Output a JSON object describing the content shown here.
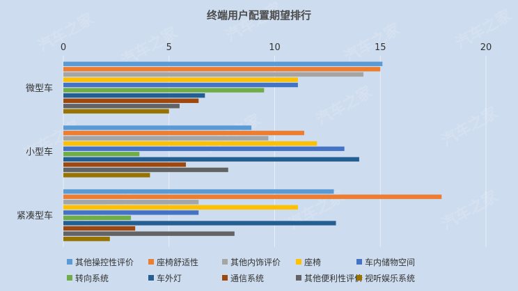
{
  "chart_data": {
    "type": "bar",
    "orientation": "horizontal",
    "title": "终端用户配置期望排行",
    "xlabel": "",
    "ylabel": "",
    "xlim": [
      0,
      20
    ],
    "xticks": [
      0,
      5,
      10,
      15,
      20
    ],
    "grid": true,
    "legend_position": "bottom",
    "categories": [
      "微型车",
      "小型车",
      "紧凑型车"
    ],
    "series": [
      {
        "name": "其他操控性评价",
        "color": "#5b9bd5",
        "values": [
          15.1,
          8.9,
          12.8
        ]
      },
      {
        "name": "座椅舒适性",
        "color": "#ed7d31",
        "values": [
          15.0,
          11.4,
          17.9
        ]
      },
      {
        "name": "其他内饰评价",
        "color": "#a5a5a5",
        "values": [
          14.2,
          9.7,
          6.4
        ]
      },
      {
        "name": "座椅",
        "color": "#ffc000",
        "values": [
          11.1,
          12.0,
          11.1
        ]
      },
      {
        "name": "车内储物空间",
        "color": "#4472c4",
        "values": [
          11.1,
          13.3,
          6.4
        ]
      },
      {
        "name": "转向系统",
        "color": "#70ad47",
        "values": [
          9.5,
          3.6,
          3.2
        ]
      },
      {
        "name": "车外灯",
        "color": "#255e91",
        "values": [
          6.7,
          14.0,
          12.9
        ]
      },
      {
        "name": "通信系统",
        "color": "#9e480e",
        "values": [
          6.4,
          5.8,
          3.4
        ]
      },
      {
        "name": "其他便利性评价",
        "color": "#636363",
        "values": [
          5.5,
          7.8,
          8.1
        ]
      },
      {
        "name": "视听娱乐系统",
        "color": "#997300",
        "values": [
          5.0,
          4.1,
          2.2
        ]
      }
    ]
  },
  "watermark": "汽车之家"
}
